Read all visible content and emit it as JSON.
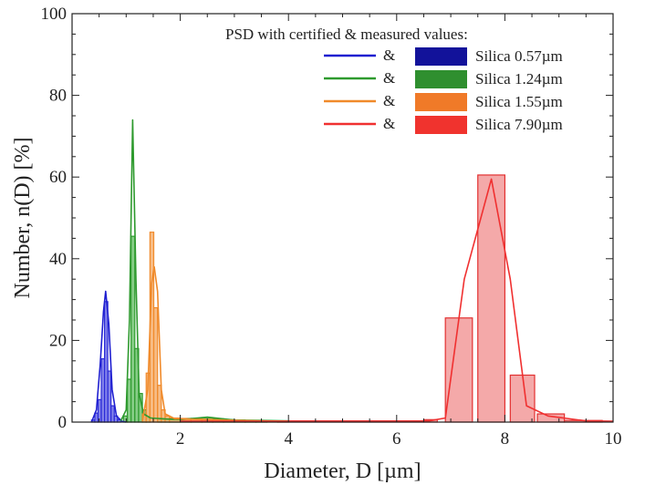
{
  "chart_data": {
    "type": "histogram+line",
    "xlabel": "Diameter, D [µm]",
    "ylabel": "Number, n(D) [%]",
    "xlim": [
      0,
      10
    ],
    "ylim": [
      0,
      100
    ],
    "xticks": [
      2,
      4,
      6,
      8,
      10
    ],
    "yticks": [
      0,
      20,
      40,
      60,
      80,
      100
    ],
    "legend": {
      "title": "PSD with certified & measured values:",
      "placement": "top-right",
      "amp": "&",
      "entries": [
        "Silica 0.57µm",
        "Silica 1.24µm",
        "Silica 1.55µm",
        "Silica 7.90µm"
      ]
    },
    "series": [
      {
        "name": "Silica 0.57µm",
        "line_color": "#1f1fd0",
        "bar_fill": "#6f6fe6",
        "bar_edge": "#2a2ad8",
        "bins": [
          [
            0.36,
            0.42,
            0.5
          ],
          [
            0.42,
            0.48,
            2.2
          ],
          [
            0.48,
            0.54,
            5.5
          ],
          [
            0.54,
            0.6,
            15.5
          ],
          [
            0.6,
            0.66,
            29.5
          ],
          [
            0.66,
            0.72,
            12.5
          ],
          [
            0.72,
            0.78,
            4.0
          ],
          [
            0.78,
            0.84,
            1.5
          ],
          [
            0.84,
            0.9,
            0.6
          ]
        ],
        "curve": [
          [
            0.36,
            0
          ],
          [
            0.45,
            3
          ],
          [
            0.52,
            14
          ],
          [
            0.58,
            27
          ],
          [
            0.62,
            32
          ],
          [
            0.68,
            24
          ],
          [
            0.74,
            8
          ],
          [
            0.82,
            1.5
          ],
          [
            0.92,
            0.2
          ],
          [
            1.0,
            0
          ]
        ]
      },
      {
        "name": "Silica 1.24µm",
        "line_color": "#2e9a2e",
        "bar_fill": "#72c472",
        "bar_edge": "#2e9a2e",
        "bins": [
          [
            0.95,
            1.02,
            1.5
          ],
          [
            1.02,
            1.09,
            10.5
          ],
          [
            1.09,
            1.16,
            45.5
          ],
          [
            1.16,
            1.23,
            18.0
          ],
          [
            1.23,
            1.3,
            7.0
          ],
          [
            1.3,
            1.37,
            3.0
          ],
          [
            1.37,
            1.44,
            1.0
          ],
          [
            1.6,
            1.8,
            0.6
          ],
          [
            1.8,
            2.0,
            0.8
          ],
          [
            2.0,
            2.2,
            0.6
          ],
          [
            2.2,
            2.4,
            0.9
          ],
          [
            2.4,
            2.6,
            1.1
          ],
          [
            2.6,
            2.8,
            0.8
          ],
          [
            2.8,
            3.0,
            0.6
          ],
          [
            3.0,
            3.2,
            0.5
          ],
          [
            3.2,
            3.4,
            0.4
          ],
          [
            3.4,
            3.6,
            0.4
          ]
        ],
        "curve": [
          [
            0.9,
            0.3
          ],
          [
            1.0,
            3
          ],
          [
            1.06,
            25
          ],
          [
            1.12,
            74
          ],
          [
            1.18,
            35
          ],
          [
            1.24,
            7
          ],
          [
            1.32,
            2
          ],
          [
            1.45,
            1
          ],
          [
            1.7,
            0.8
          ],
          [
            2.0,
            0.6
          ],
          [
            2.5,
            1.2
          ],
          [
            3.0,
            0.5
          ],
          [
            3.5,
            0.4
          ],
          [
            4.0,
            0.3
          ]
        ]
      },
      {
        "name": "Silica 1.55µm",
        "line_color": "#f08a2a",
        "bar_fill": "#f6b070",
        "bar_edge": "#f08a2a",
        "bins": [
          [
            1.3,
            1.37,
            2.0
          ],
          [
            1.37,
            1.44,
            12.0
          ],
          [
            1.44,
            1.51,
            46.5
          ],
          [
            1.51,
            1.58,
            28.0
          ],
          [
            1.58,
            1.65,
            9.0
          ],
          [
            1.65,
            1.72,
            3.0
          ],
          [
            1.72,
            1.8,
            1.5
          ],
          [
            1.8,
            2.0,
            1.0
          ],
          [
            2.0,
            2.2,
            0.9
          ],
          [
            2.2,
            2.4,
            0.8
          ],
          [
            2.4,
            2.6,
            0.7
          ],
          [
            2.6,
            2.8,
            0.6
          ],
          [
            2.8,
            3.0,
            0.5
          ],
          [
            3.0,
            3.2,
            0.4
          ],
          [
            3.2,
            3.4,
            0.4
          ],
          [
            3.4,
            3.6,
            0.3
          ],
          [
            3.6,
            3.8,
            0.3
          ],
          [
            3.8,
            4.0,
            0.2
          ]
        ],
        "curve": [
          [
            1.3,
            0.3
          ],
          [
            1.4,
            8
          ],
          [
            1.47,
            34
          ],
          [
            1.52,
            38
          ],
          [
            1.58,
            32
          ],
          [
            1.65,
            8
          ],
          [
            1.72,
            2
          ],
          [
            1.9,
            0.8
          ],
          [
            2.5,
            0.6
          ],
          [
            3.5,
            0.3
          ],
          [
            4.0,
            0.2
          ]
        ]
      },
      {
        "name": "Silica 7.90µm",
        "line_color": "#f03030",
        "bar_fill": "#f29a9a",
        "bar_edge": "#e23030",
        "bins": [
          [
            3.8,
            6.5,
            0.3
          ],
          [
            6.5,
            6.75,
            0.6
          ],
          [
            6.9,
            7.4,
            25.5
          ],
          [
            7.5,
            8.0,
            60.5
          ],
          [
            8.1,
            8.55,
            11.5
          ],
          [
            8.6,
            9.1,
            2.0
          ],
          [
            9.1,
            9.8,
            0.4
          ]
        ],
        "curve": [
          [
            2.0,
            0.2
          ],
          [
            6.0,
            0.2
          ],
          [
            6.6,
            0.3
          ],
          [
            6.9,
            1
          ],
          [
            7.25,
            35
          ],
          [
            7.75,
            59.5
          ],
          [
            8.1,
            35
          ],
          [
            8.4,
            4
          ],
          [
            8.8,
            1.5
          ],
          [
            9.5,
            0.3
          ],
          [
            10,
            0.2
          ]
        ]
      }
    ]
  }
}
